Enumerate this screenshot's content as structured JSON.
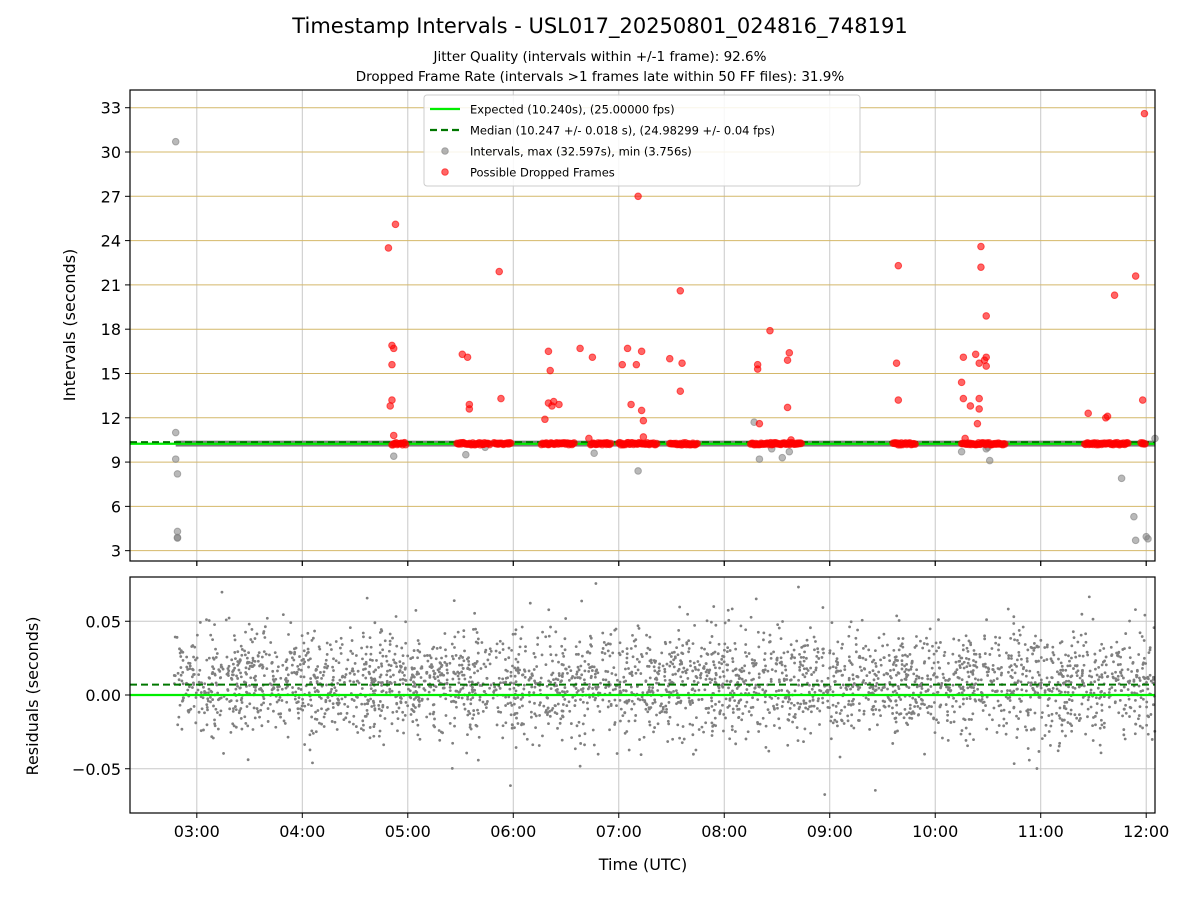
{
  "figure": {
    "title": "Timestamp Intervals - USL017_20250801_024816_748191",
    "subtitle_1": "Jitter Quality (intervals within +/-1 frame): 92.6%",
    "subtitle_2": "Dropped Frame Rate (intervals >1 frames late within 50 FF files): 31.9%"
  },
  "chart_data": [
    {
      "type": "scatter",
      "panel": "top",
      "ylabel": "Intervals (seconds)",
      "xlabel": "",
      "xlim": [
        "02:22",
        "12:05"
      ],
      "ylim": [
        2.3,
        34.2
      ],
      "yticks": [
        3,
        6,
        9,
        12,
        15,
        18,
        21,
        24,
        27,
        30,
        33
      ],
      "ytick_labels": [
        "3",
        "6",
        "9",
        "12",
        "15",
        "18",
        "21",
        "24",
        "27",
        "30",
        "33"
      ],
      "xticks": [
        "03:00",
        "04:00",
        "05:00",
        "06:00",
        "07:00",
        "08:00",
        "09:00",
        "10:00",
        "11:00",
        "12:00"
      ],
      "grid": true,
      "legend_position": "top-center",
      "colors": {
        "expected": "#00ee00",
        "median": "#007700",
        "intervals": "#808080",
        "dropped": "#ff0000",
        "ygrid": "#d4b86a",
        "xgrid": "#c8c8c8"
      },
      "lines": [
        {
          "name": "Expected (10.240s), (25.00000 fps)",
          "y": 10.24,
          "style": "solid"
        },
        {
          "name": "Median (10.247 +/- 0.018 s), (24.98299 +/- 0.04 fps)",
          "y": 10.247,
          "style": "dashed"
        }
      ],
      "series": [
        {
          "name": "Intervals, max (32.597s), min (3.756s)",
          "points": [
            [
              "02:48",
              30.7
            ],
            [
              "02:48",
              11.0
            ],
            [
              "02:48",
              9.2
            ],
            [
              "02:49",
              8.2
            ],
            [
              "02:49",
              4.3
            ],
            [
              "02:49",
              3.9
            ],
            [
              "02:49",
              3.85
            ],
            [
              "04:52",
              9.4
            ],
            [
              "05:33",
              9.5
            ],
            [
              "05:44",
              10.0
            ],
            [
              "06:46",
              9.6
            ],
            [
              "07:11",
              8.4
            ],
            [
              "08:17",
              11.7
            ],
            [
              "08:20",
              9.2
            ],
            [
              "08:27",
              9.9
            ],
            [
              "08:33",
              9.3
            ],
            [
              "08:37",
              9.7
            ],
            [
              "10:15",
              9.7
            ],
            [
              "10:29",
              9.9
            ],
            [
              "10:30",
              10.0
            ],
            [
              "10:31",
              9.1
            ],
            [
              "11:46",
              7.9
            ],
            [
              "11:53",
              5.3
            ],
            [
              "11:54",
              3.7
            ],
            [
              "12:00",
              3.95
            ],
            [
              "12:01",
              3.8
            ],
            [
              "12:05",
              10.6
            ]
          ]
        },
        {
          "name": "Possible Dropped Frames",
          "points": [
            [
              "04:49",
              23.5
            ],
            [
              "04:50",
              12.8
            ],
            [
              "04:51",
              16.9
            ],
            [
              "04:51",
              13.2
            ],
            [
              "04:51",
              15.6
            ],
            [
              "04:52",
              16.7
            ],
            [
              "04:52",
              10.8
            ],
            [
              "04:53",
              25.1
            ],
            [
              "05:31",
              16.3
            ],
            [
              "05:34",
              16.1
            ],
            [
              "05:35",
              12.6
            ],
            [
              "05:35",
              12.9
            ],
            [
              "05:52",
              21.9
            ],
            [
              "05:53",
              13.3
            ],
            [
              "05:43",
              10.2
            ],
            [
              "06:18",
              11.9
            ],
            [
              "06:20",
              13.0
            ],
            [
              "06:20",
              16.5
            ],
            [
              "06:21",
              15.2
            ],
            [
              "06:22",
              12.8
            ],
            [
              "06:23",
              13.1
            ],
            [
              "06:26",
              12.9
            ],
            [
              "06:38",
              16.7
            ],
            [
              "06:43",
              10.6
            ],
            [
              "06:45",
              16.1
            ],
            [
              "06:53",
              10.3
            ],
            [
              "07:02",
              15.6
            ],
            [
              "07:05",
              16.7
            ],
            [
              "07:07",
              12.9
            ],
            [
              "07:10",
              15.6
            ],
            [
              "07:11",
              27.0
            ],
            [
              "07:13",
              16.5
            ],
            [
              "07:13",
              12.5
            ],
            [
              "07:14",
              11.8
            ],
            [
              "07:14",
              10.7
            ],
            [
              "07:29",
              16.0
            ],
            [
              "07:35",
              20.6
            ],
            [
              "07:35",
              13.8
            ],
            [
              "07:36",
              15.7
            ],
            [
              "08:19",
              15.6
            ],
            [
              "08:19",
              15.3
            ],
            [
              "08:20",
              11.6
            ],
            [
              "08:26",
              17.9
            ],
            [
              "08:28",
              10.3
            ],
            [
              "08:36",
              15.9
            ],
            [
              "08:37",
              16.4
            ],
            [
              "08:36",
              12.7
            ],
            [
              "08:38",
              10.5
            ],
            [
              "09:38",
              15.7
            ],
            [
              "09:39",
              22.3
            ],
            [
              "09:39",
              13.2
            ],
            [
              "10:15",
              14.4
            ],
            [
              "10:16",
              16.1
            ],
            [
              "10:16",
              13.3
            ],
            [
              "10:17",
              10.6
            ],
            [
              "10:20",
              12.8
            ],
            [
              "10:23",
              16.3
            ],
            [
              "10:24",
              11.6
            ],
            [
              "10:25",
              12.6
            ],
            [
              "10:25",
              13.3
            ],
            [
              "10:25",
              15.7
            ],
            [
              "10:26",
              23.6
            ],
            [
              "10:26",
              22.2
            ],
            [
              "10:28",
              15.9
            ],
            [
              "10:29",
              16.1
            ],
            [
              "10:29",
              15.5
            ],
            [
              "10:29",
              18.9
            ],
            [
              "11:27",
              12.3
            ],
            [
              "11:37",
              12.0
            ],
            [
              "11:38",
              12.1
            ],
            [
              "11:42",
              20.3
            ],
            [
              "11:54",
              21.6
            ],
            [
              "11:58",
              13.2
            ],
            [
              "11:59",
              32.6
            ]
          ],
          "clusters_at_about_10_24": [
            [
              "04:51",
              "04:59"
            ],
            [
              "05:28",
              "05:47"
            ],
            [
              "05:49",
              "05:59"
            ],
            [
              "06:16",
              "06:35"
            ],
            [
              "06:44",
              "06:56"
            ],
            [
              "07:00",
              "07:22"
            ],
            [
              "07:29",
              "07:45"
            ],
            [
              "08:15",
              "08:44"
            ],
            [
              "09:36",
              "09:49"
            ],
            [
              "10:15",
              "10:40"
            ],
            [
              "11:25",
              "11:50"
            ],
            [
              "11:57",
              "12:00"
            ]
          ]
        }
      ]
    },
    {
      "type": "scatter",
      "panel": "bottom",
      "ylabel": "Residuals (seconds)",
      "xlabel": "Time (UTC)",
      "xlim": [
        "02:22",
        "12:05"
      ],
      "ylim": [
        -0.08,
        0.08
      ],
      "yticks": [
        -0.05,
        0.0,
        0.05
      ],
      "ytick_labels": [
        "−0.05",
        "0.00",
        "0.05"
      ],
      "xticks": [
        "03:00",
        "04:00",
        "05:00",
        "06:00",
        "07:00",
        "08:00",
        "09:00",
        "10:00",
        "11:00",
        "12:00"
      ],
      "grid": true,
      "colors": {
        "expected": "#00ee00",
        "median": "#007700",
        "residuals": "#808080"
      },
      "lines": [
        {
          "name": "Expected",
          "y": 0.0,
          "style": "solid"
        },
        {
          "name": "Median",
          "y": 0.007,
          "style": "dashed"
        }
      ],
      "series": [
        {
          "name": "Residuals",
          "x_range": [
            "02:47",
            "12:05"
          ],
          "count": 3200,
          "mean": 0.008,
          "std": 0.018,
          "min": -0.073,
          "max": 0.077
        }
      ]
    }
  ]
}
